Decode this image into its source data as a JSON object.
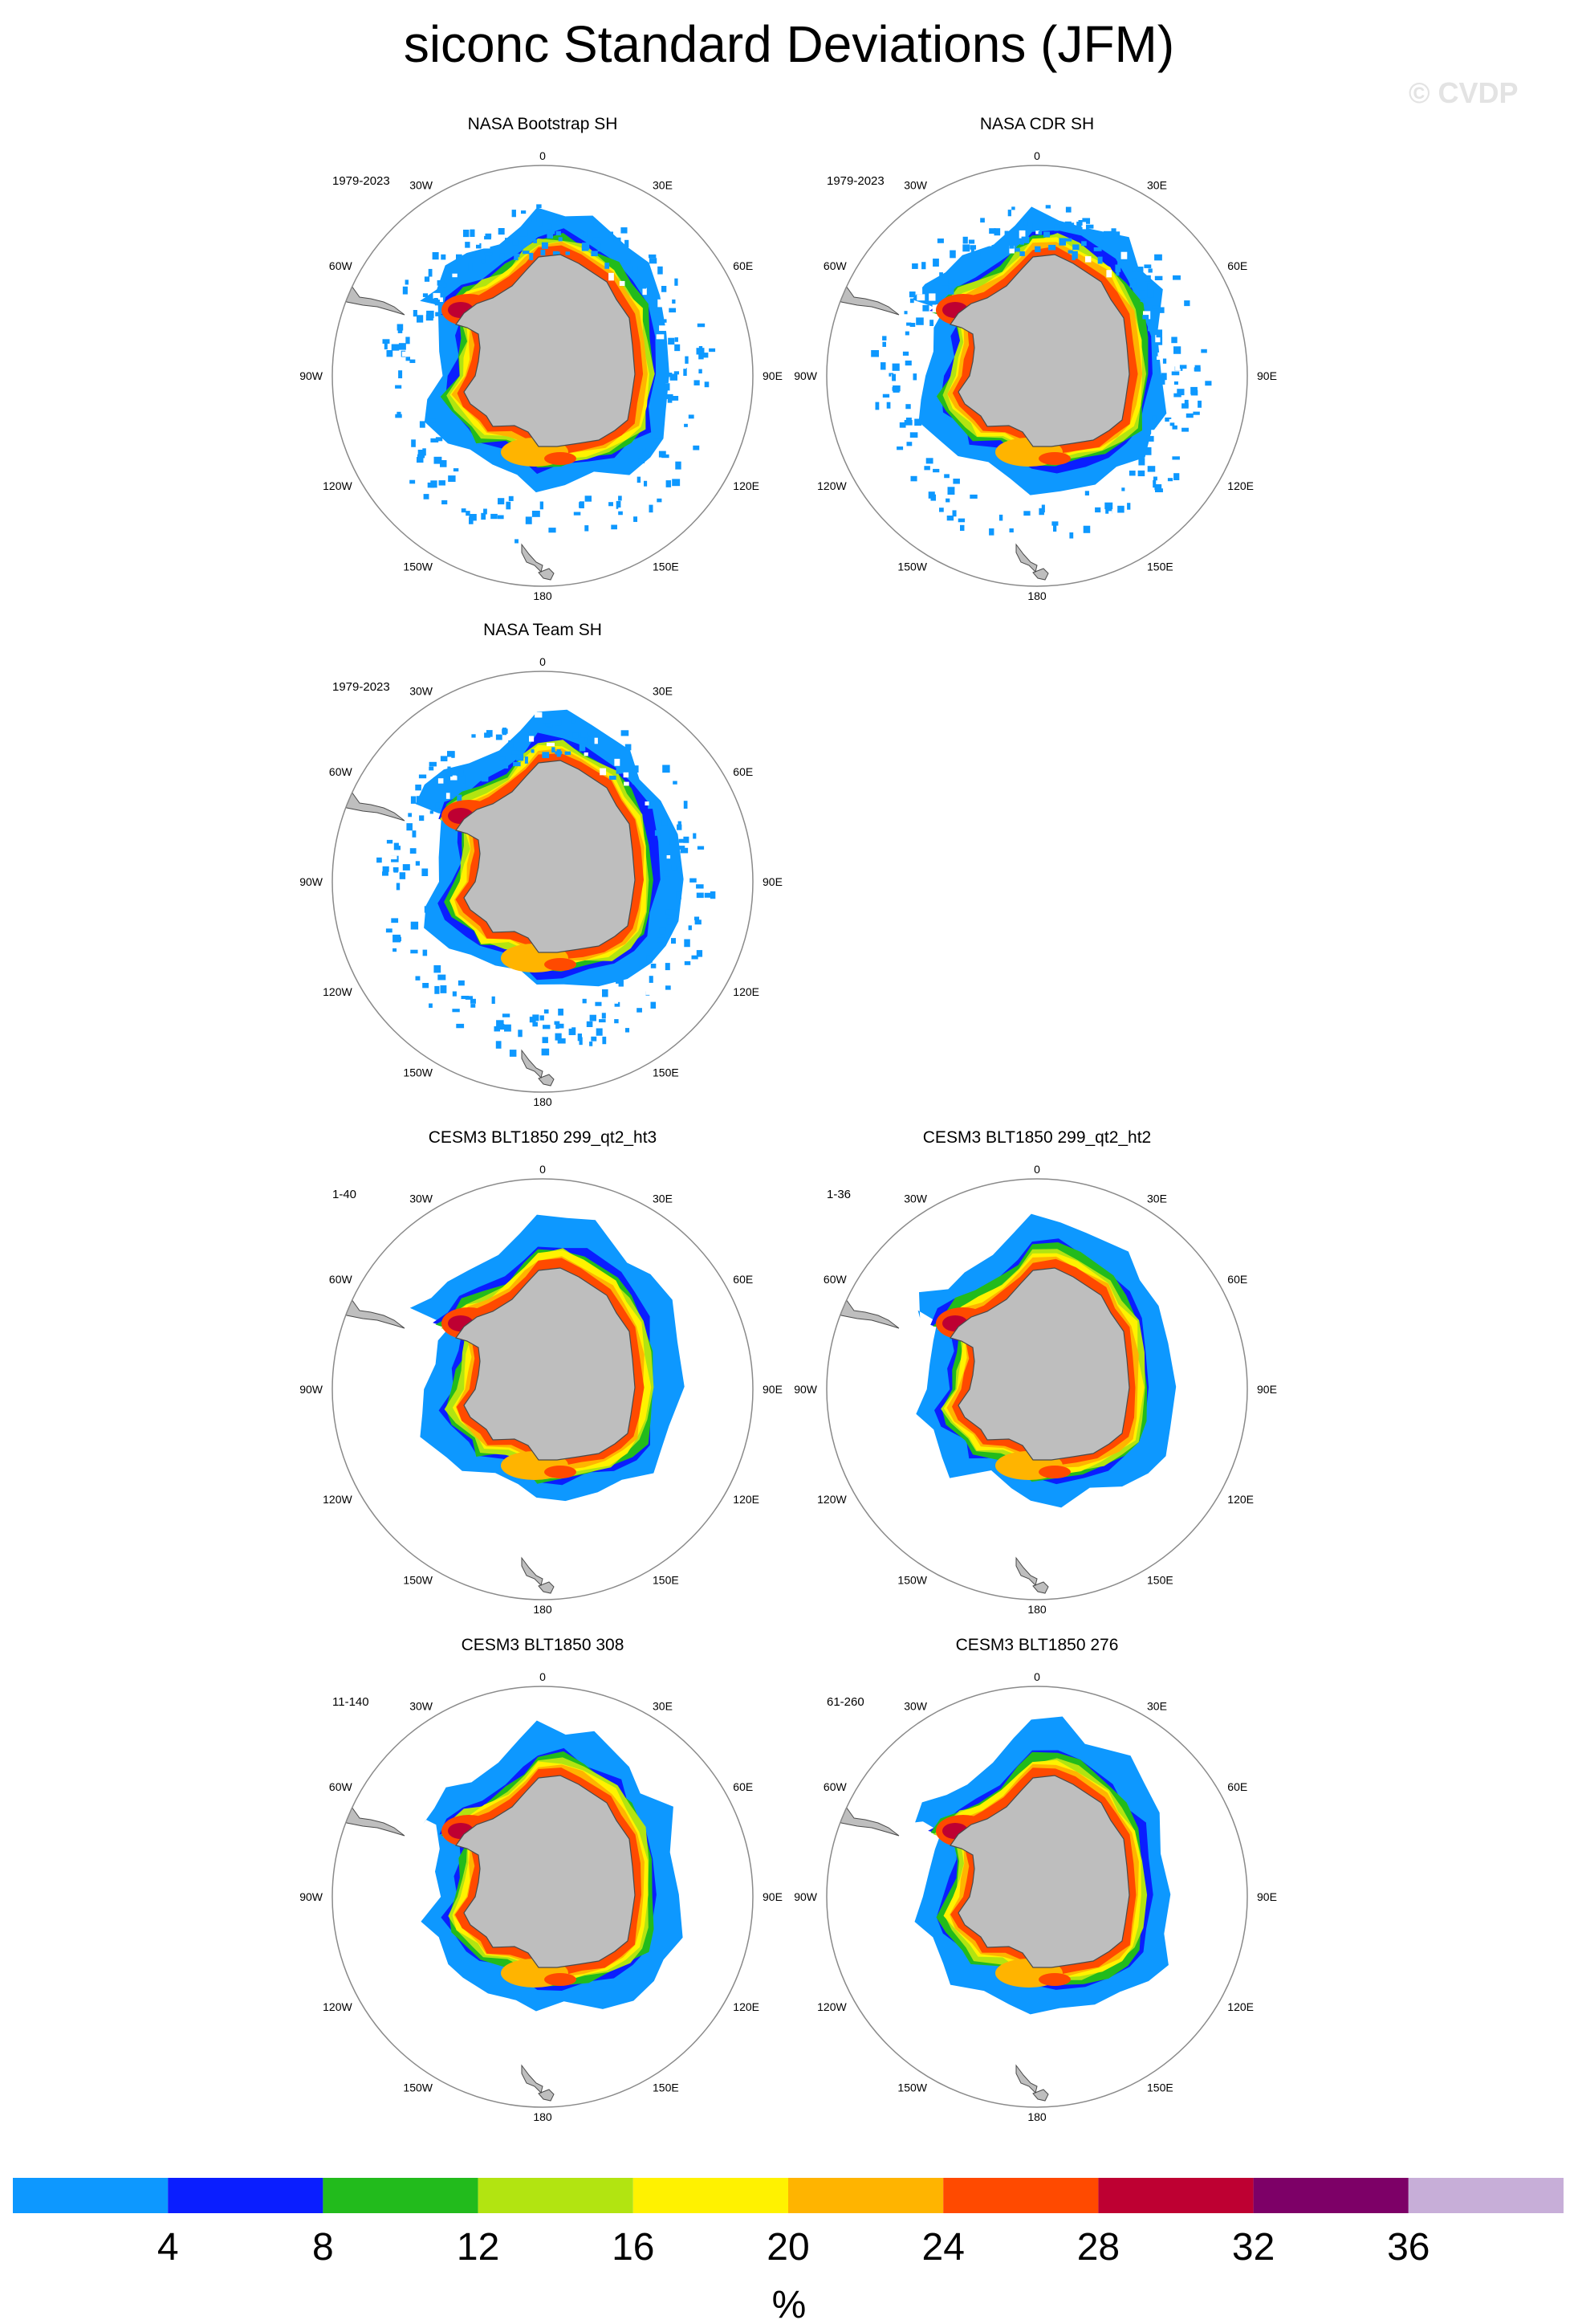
{
  "title": "siconc Standard Deviations (JFM)",
  "watermark": "© CVDP",
  "lon_labels": [
    "0",
    "30E",
    "60E",
    "90E",
    "120E",
    "150E",
    "180",
    "150W",
    "120W",
    "90W",
    "60W",
    "30W"
  ],
  "colors": {
    "land": "#bebebe",
    "coastline": "#4a4a4a",
    "circle": "#8a8a8a"
  },
  "projection": "south-polar-stereographic",
  "panels": [
    {
      "title": "NASA Bootstrap SH",
      "period": "1979-2023",
      "extent": "observed-sparse"
    },
    {
      "title": "NASA CDR SH",
      "period": "1979-2023",
      "extent": "observed-sparse"
    },
    {
      "title": "NASA Team SH",
      "period": "1979-2023",
      "extent": "observed-sparse"
    },
    {
      "title": "CESM3 BLT1850 299_qt2_ht3",
      "period": "1-40",
      "extent": "model-wide"
    },
    {
      "title": "CESM3 BLT1850 299_qt2_ht2",
      "period": "1-36",
      "extent": "model-wide"
    },
    {
      "title": "CESM3 BLT1850 308",
      "period": "11-140",
      "extent": "model-wide"
    },
    {
      "title": "CESM3 BLT1850 276",
      "period": "61-260",
      "extent": "model-wide"
    }
  ],
  "colorbar": {
    "unit": "%",
    "tick_labels": [
      "4",
      "8",
      "12",
      "16",
      "20",
      "24",
      "28",
      "32",
      "36"
    ],
    "colors": [
      "#0d98ff",
      "#0a1eff",
      "#22bb1c",
      "#b2e411",
      "#fff200",
      "#ffb400",
      "#ff4a00",
      "#be0032",
      "#7d0067",
      "#c7aed8"
    ]
  }
}
